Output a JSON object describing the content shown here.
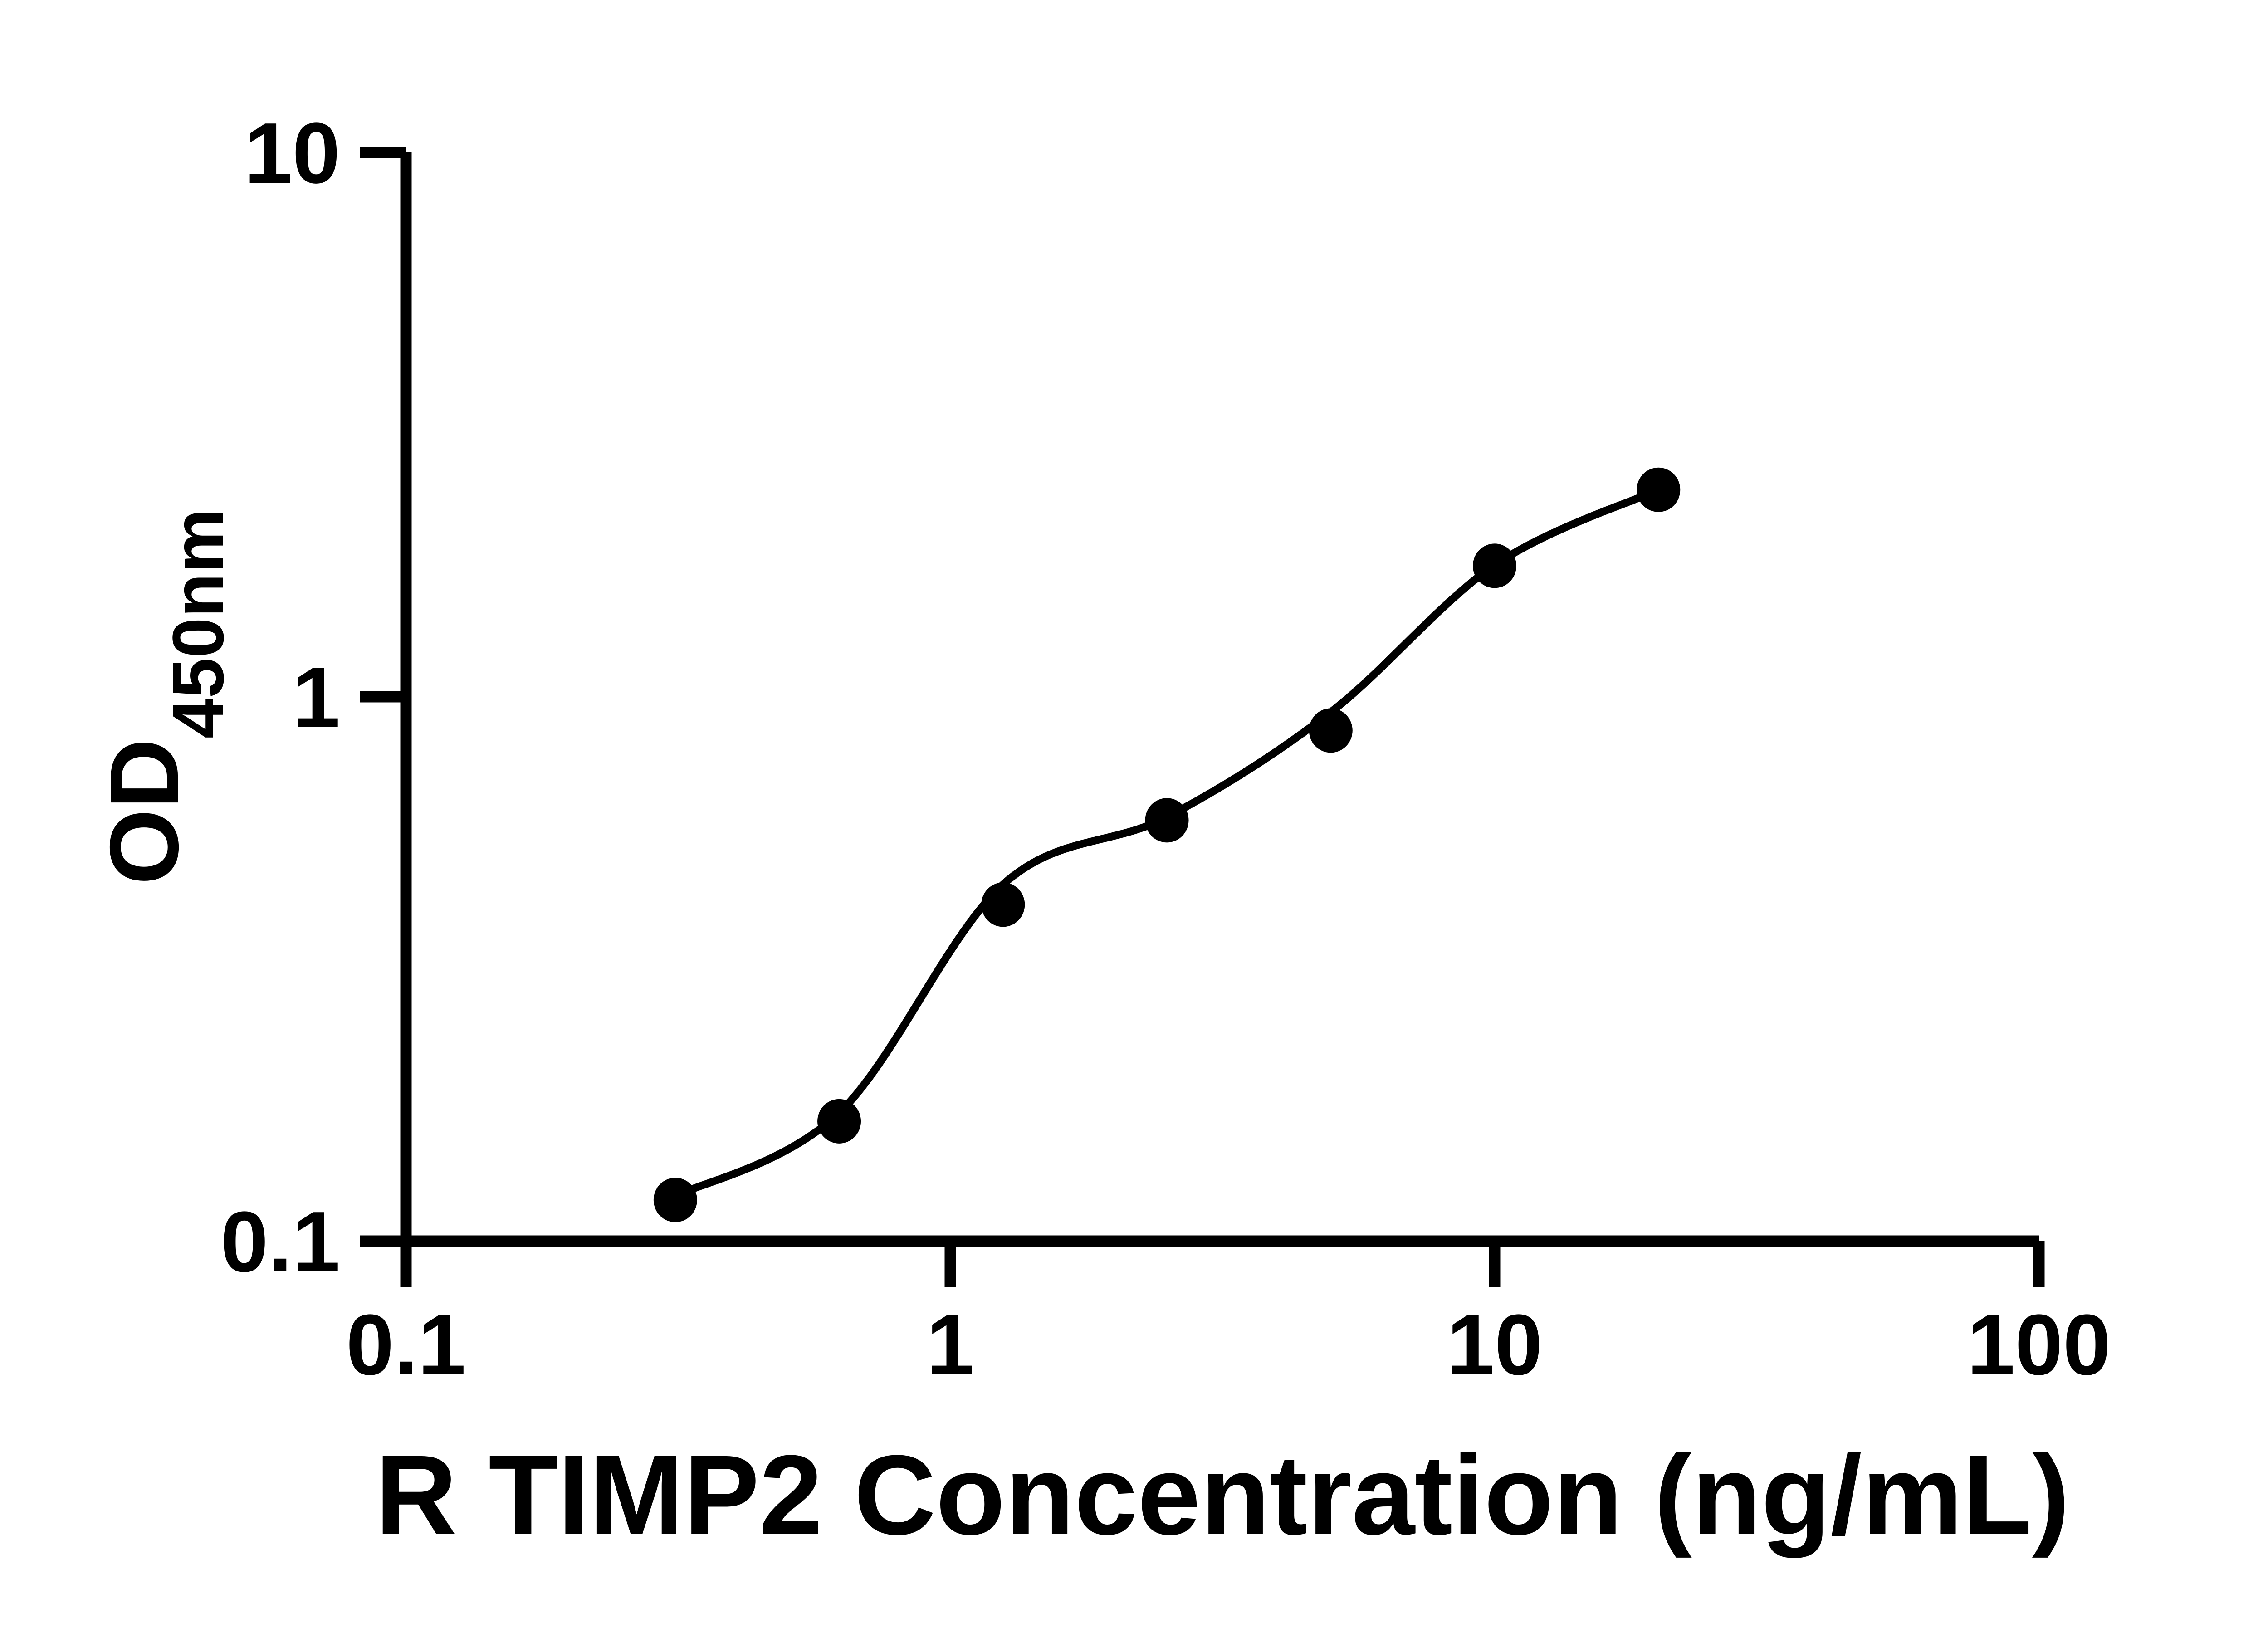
{
  "chart_data": {
    "type": "scatter",
    "xlabel": "R TIMP2 Concentration (ng/mL)",
    "ylabel_main": "OD",
    "ylabel_sub": "450nm",
    "x_scale": "log",
    "y_scale": "log",
    "xlim": [
      0.1,
      100
    ],
    "ylim": [
      0.1,
      10
    ],
    "x_ticks": [
      {
        "value": 0.1,
        "label": "0.1"
      },
      {
        "value": 1,
        "label": "1"
      },
      {
        "value": 10,
        "label": "10"
      },
      {
        "value": 100,
        "label": "100"
      }
    ],
    "y_ticks": [
      {
        "value": 0.1,
        "label": "0.1"
      },
      {
        "value": 1,
        "label": "1"
      },
      {
        "value": 10,
        "label": "10"
      }
    ],
    "grid": false,
    "legend": false,
    "colors": {
      "marker": "#000000",
      "line": "#000000",
      "axis": "#000000",
      "text": "#000000",
      "background": "#ffffff"
    },
    "points": [
      {
        "x": 0.3125,
        "y": 0.119
      },
      {
        "x": 0.625,
        "y": 0.166
      },
      {
        "x": 1.25,
        "y": 0.415
      },
      {
        "x": 2.5,
        "y": 0.593
      },
      {
        "x": 5,
        "y": 0.867
      },
      {
        "x": 10,
        "y": 1.74
      },
      {
        "x": 20,
        "y": 2.4
      }
    ],
    "fit_curve": [
      {
        "x": 0.3125,
        "y": 0.121
      },
      {
        "x": 0.625,
        "y": 0.172
      },
      {
        "x": 1.25,
        "y": 0.452
      },
      {
        "x": 2.5,
        "y": 0.601
      },
      {
        "x": 5,
        "y": 0.937
      },
      {
        "x": 10,
        "y": 1.745
      },
      {
        "x": 20,
        "y": 2.4
      }
    ]
  }
}
